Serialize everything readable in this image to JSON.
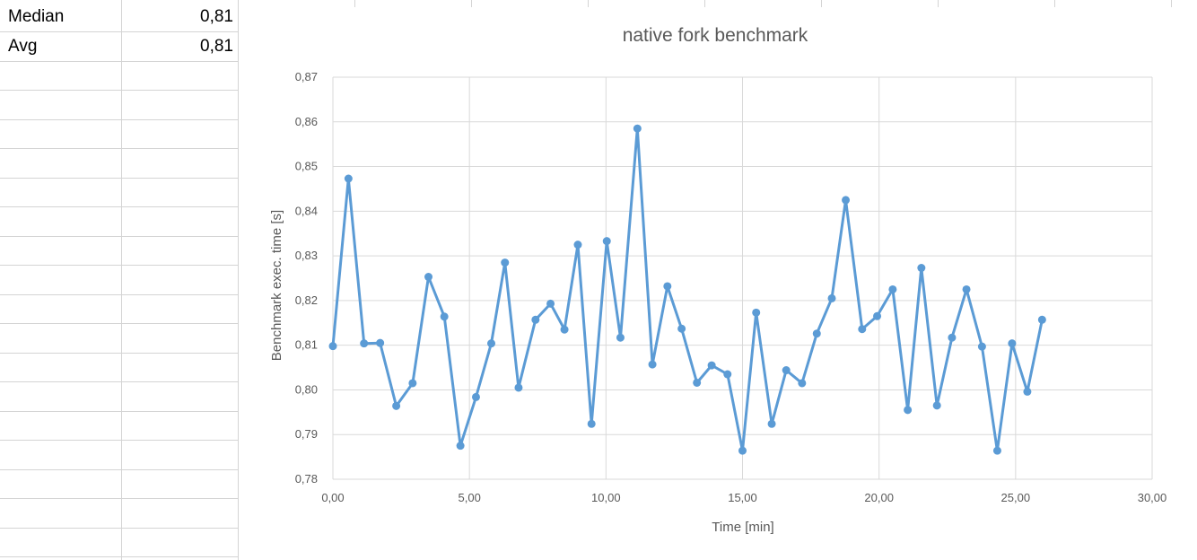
{
  "sheet": {
    "rows": [
      {
        "label": "Median",
        "value": "0,81"
      },
      {
        "label": "Avg",
        "value": "0,81"
      }
    ]
  },
  "chart_data": {
    "type": "scatter",
    "title": "native fork benchmark",
    "xlabel": "Time [min]",
    "ylabel": "Benchmark exec. time [s]",
    "xlim": [
      0,
      30
    ],
    "ylim": [
      0.78,
      0.87
    ],
    "x_ticks": [
      "0,00",
      "5,00",
      "10,00",
      "15,00",
      "20,00",
      "25,00",
      "30,00"
    ],
    "y_ticks": [
      "0,78",
      "0,79",
      "0,80",
      "0,81",
      "0,82",
      "0,83",
      "0,84",
      "0,85",
      "0,86",
      "0,87"
    ],
    "grid": true,
    "line_color": "#5B9BD5",
    "series": [
      {
        "x": [
          0.0,
          0.57,
          1.14,
          1.73,
          2.32,
          2.92,
          3.5,
          4.08,
          4.67,
          5.24,
          5.8,
          6.3,
          6.8,
          7.42,
          7.97,
          8.48,
          8.97,
          9.47,
          10.03,
          10.53,
          11.15,
          11.7,
          12.25,
          12.77,
          13.33,
          13.87,
          14.45,
          15.0,
          15.5,
          16.07,
          16.6,
          17.18,
          17.72,
          18.27,
          18.78,
          19.38,
          19.93,
          20.5,
          21.05,
          21.55,
          22.12,
          22.67,
          23.2,
          23.77,
          24.33,
          24.87,
          25.43,
          25.97
        ],
        "y": [
          0.8098,
          0.8473,
          0.8104,
          0.8105,
          0.7964,
          0.8015,
          0.8253,
          0.8164,
          0.7875,
          0.7984,
          0.8104,
          0.8285,
          0.8005,
          0.8157,
          0.8193,
          0.8135,
          0.8325,
          0.7924,
          0.8333,
          0.8117,
          0.8585,
          0.8057,
          0.8232,
          0.8137,
          0.8016,
          0.8055,
          0.8035,
          0.7864,
          0.8173,
          0.7924,
          0.8044,
          0.8015,
          0.8126,
          0.8205,
          0.8425,
          0.8136,
          0.8165,
          0.8225,
          0.7955,
          0.8273,
          0.7965,
          0.8117,
          0.8225,
          0.8097,
          0.7864,
          0.8104,
          0.7996,
          0.8157
        ]
      }
    ]
  }
}
